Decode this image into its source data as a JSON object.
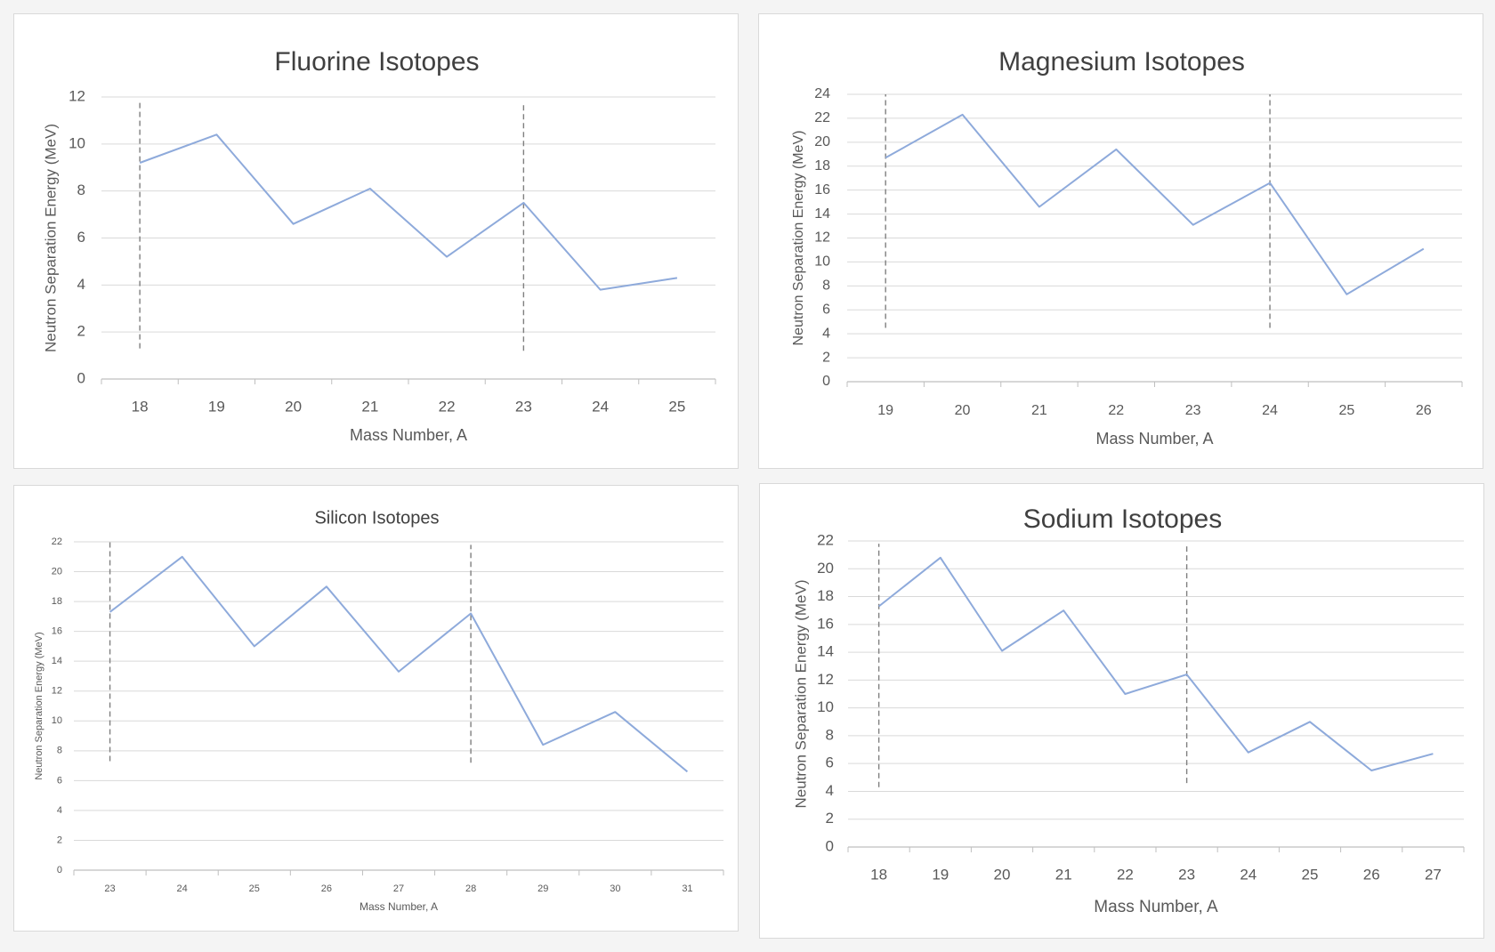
{
  "colors": {
    "series": "#8eaadb",
    "marker": "#7f7f7f"
  },
  "chart_data": [
    {
      "id": "fluorine",
      "type": "line",
      "title": "Fluorine Isotopes",
      "xlabel": "Mass Number, A",
      "ylabel": "Neutron Separation Energy (MeV)",
      "categories": [
        "18",
        "19",
        "20",
        "21",
        "22",
        "23",
        "24",
        "25"
      ],
      "values": [
        9.2,
        10.4,
        6.6,
        8.1,
        5.2,
        7.5,
        3.8,
        4.3
      ],
      "ylim": [
        0,
        12
      ],
      "yticks": [
        0,
        2,
        4,
        6,
        8,
        10,
        12
      ],
      "grid": true,
      "legend": "none",
      "reference_lines": [
        {
          "category": "18",
          "range": [
            1.3,
            11.9
          ]
        },
        {
          "category": "23",
          "range": [
            1.2,
            11.7
          ]
        }
      ]
    },
    {
      "id": "magnesium",
      "type": "line",
      "title": "Magnesium Isotopes",
      "xlabel": "Mass Number, A",
      "ylabel": "Neutron Separation Energy (MeV)",
      "categories": [
        "19",
        "20",
        "21",
        "22",
        "23",
        "24",
        "25",
        "26"
      ],
      "values": [
        18.7,
        22.3,
        14.6,
        19.4,
        13.1,
        16.6,
        7.3,
        11.1
      ],
      "ylim": [
        0,
        24
      ],
      "yticks": [
        0,
        2,
        4,
        6,
        8,
        10,
        12,
        14,
        16,
        18,
        20,
        22,
        24
      ],
      "grid": true,
      "legend": "none",
      "reference_lines": [
        {
          "category": "19",
          "range": [
            4.5,
            24.0
          ]
        },
        {
          "category": "24",
          "range": [
            4.5,
            24.0
          ]
        }
      ]
    },
    {
      "id": "silicon",
      "type": "line",
      "title": "Silicon Isotopes",
      "xlabel": "Mass Number, A",
      "ylabel": "Neutron Separation Energy (MeV)",
      "categories": [
        "23",
        "24",
        "25",
        "26",
        "27",
        "28",
        "29",
        "30",
        "31"
      ],
      "values": [
        17.3,
        21.0,
        15.0,
        19.0,
        13.3,
        17.2,
        8.4,
        10.6,
        6.6
      ],
      "ylim": [
        0,
        22
      ],
      "yticks": [
        0,
        2,
        4,
        6,
        8,
        10,
        12,
        14,
        16,
        18,
        20,
        22
      ],
      "grid": true,
      "legend": "none",
      "reference_lines": [
        {
          "category": "23",
          "range": [
            7.3,
            22.0
          ]
        },
        {
          "category": "28",
          "range": [
            7.2,
            21.8
          ]
        }
      ]
    },
    {
      "id": "sodium",
      "type": "line",
      "title": "Sodium Isotopes",
      "xlabel": "Mass Number,  A",
      "ylabel": "Neutron Separation Energy (MeV)",
      "categories": [
        "18",
        "19",
        "20",
        "21",
        "22",
        "23",
        "24",
        "25",
        "26",
        "27"
      ],
      "values": [
        17.3,
        20.8,
        14.1,
        17.0,
        11.0,
        12.4,
        6.8,
        9.0,
        5.5,
        6.7
      ],
      "ylim": [
        0,
        22
      ],
      "yticks": [
        0,
        2,
        4,
        6,
        8,
        10,
        12,
        14,
        16,
        18,
        20,
        22
      ],
      "grid": true,
      "legend": "none",
      "reference_lines": [
        {
          "category": "18",
          "range": [
            4.3,
            21.8
          ]
        },
        {
          "category": "23",
          "range": [
            4.6,
            21.8
          ]
        }
      ]
    }
  ]
}
